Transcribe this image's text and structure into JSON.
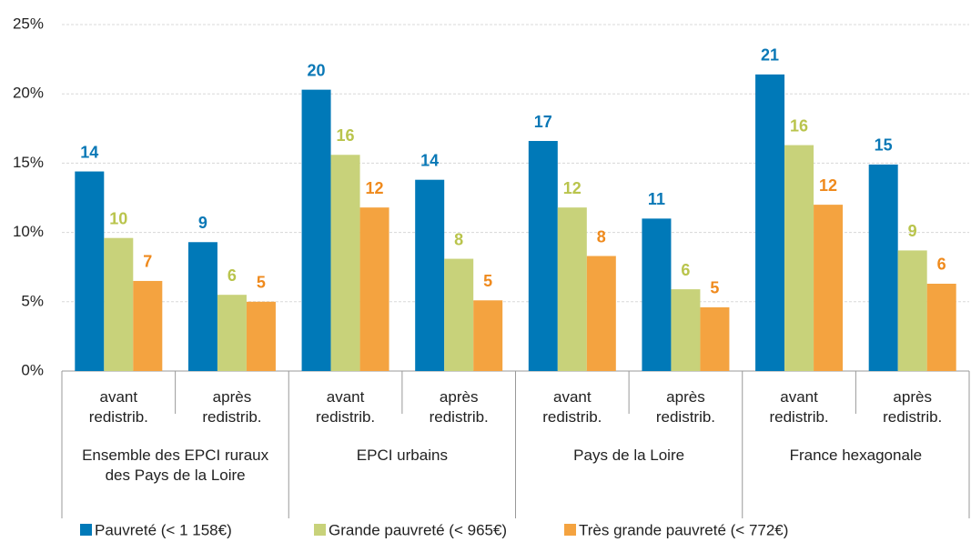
{
  "chart_data": {
    "type": "bar",
    "categories": [
      "avant redistrib.",
      "après redistrib.",
      "avant redistrib.",
      "après redistrib.",
      "avant redistrib.",
      "après redistrib.",
      "avant redistrib.",
      "après redistrib."
    ],
    "groups": [
      "Ensemble des EPCI ruraux des Pays de la Loire",
      "EPCI urbains",
      "Pays de la Loire",
      "France hexagonale"
    ],
    "series": [
      {
        "name": "Pauvreté (< 1 158€)",
        "color": "#0079b8",
        "label_color": "#0a78b6",
        "values": [
          14.4,
          9.3,
          20.3,
          13.8,
          16.6,
          11.0,
          21.4,
          14.9
        ],
        "value_labels": [
          "14",
          "9",
          "20",
          "14",
          "17",
          "11",
          "21",
          "15"
        ]
      },
      {
        "name": "Grande pauvreté (< 965€)",
        "color": "#c8d27a",
        "label_color": "#b9c44c",
        "values": [
          9.6,
          5.5,
          15.6,
          8.1,
          11.8,
          5.9,
          16.3,
          8.7
        ],
        "value_labels": [
          "10",
          "6",
          "16",
          "8",
          "12",
          "6",
          "16",
          "9"
        ]
      },
      {
        "name": "Très grande pauvreté (< 772€)",
        "color": "#f4a340",
        "label_color": "#ef8a1d",
        "values": [
          6.5,
          5.0,
          11.8,
          5.1,
          8.3,
          4.6,
          12.0,
          6.3
        ],
        "value_labels": [
          "7",
          "5",
          "12",
          "5",
          "8",
          "5",
          "12",
          "6"
        ]
      }
    ],
    "ylim": [
      0,
      25
    ],
    "yticks": [
      {
        "value": 0,
        "label": "0%"
      },
      {
        "value": 5,
        "label": "5%"
      },
      {
        "value": 10,
        "label": "10%"
      },
      {
        "value": 15,
        "label": "15%"
      },
      {
        "value": 20,
        "label": "20%"
      },
      {
        "value": 25,
        "label": "25%"
      }
    ],
    "grid": true
  }
}
